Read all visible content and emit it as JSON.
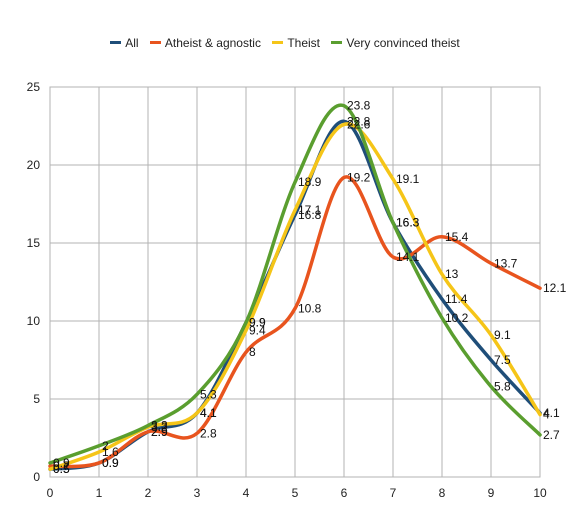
{
  "chart_data": {
    "type": "line",
    "title": "",
    "xlabel": "",
    "ylabel": "",
    "x": [
      0,
      1,
      2,
      3,
      4,
      5,
      6,
      7,
      8,
      9,
      10
    ],
    "xlim": [
      0,
      10
    ],
    "ylim": [
      0,
      25
    ],
    "x_ticks": [
      "0",
      "1",
      "2",
      "3",
      "4",
      "5",
      "6",
      "7",
      "8",
      "9",
      "10"
    ],
    "y_ticks": [
      "0",
      "5",
      "10",
      "15",
      "20",
      "25"
    ],
    "grid": true,
    "legend_position": "top",
    "series": [
      {
        "name": "All",
        "color": "#1f4e79",
        "values": [
          0.5,
          0.9,
          2.9,
          4.1,
          9.9,
          16.8,
          22.8,
          16.3,
          11.4,
          7.5,
          4.1
        ],
        "labels": [
          "0.5",
          "0.9",
          "2.9",
          "4.1",
          "9.9",
          "16.8",
          "22.8",
          "16.3",
          "11.4",
          "7.5",
          "4.1"
        ]
      },
      {
        "name": "Atheist & agnostic",
        "color": "#e8541e",
        "values": [
          0.7,
          0.9,
          2.9,
          2.8,
          8,
          10.8,
          19.2,
          14.1,
          15.4,
          13.7,
          12.1
        ],
        "labels": [
          "0.7",
          "0.9",
          "2.9",
          "2.8",
          "8",
          "10.8",
          "19.2",
          "14.1",
          "15.4",
          "13.7",
          "12.1"
        ]
      },
      {
        "name": "Theist",
        "color": "#f5c518",
        "values": [
          0.5,
          1.6,
          3.2,
          4.1,
          9.4,
          17.1,
          22.6,
          19.1,
          13,
          9.1,
          4
        ],
        "labels": [
          "0.5",
          "1.6",
          "3.2",
          "4.1",
          "9.4",
          "17.1",
          "22.6",
          "19.1",
          "13",
          "9.1",
          "4"
        ]
      },
      {
        "name": "Very convinced theist",
        "color": "#5a9e2f",
        "values": [
          0.9,
          2,
          3.3,
          5.3,
          9.9,
          18.9,
          23.8,
          16.3,
          10.2,
          5.8,
          2.7
        ],
        "labels": [
          "0.9",
          "2",
          "3.3",
          "5.3",
          "9.9",
          "18.9",
          "23.8",
          "16.3",
          "10.2",
          "5.8",
          "2.7"
        ]
      }
    ]
  }
}
